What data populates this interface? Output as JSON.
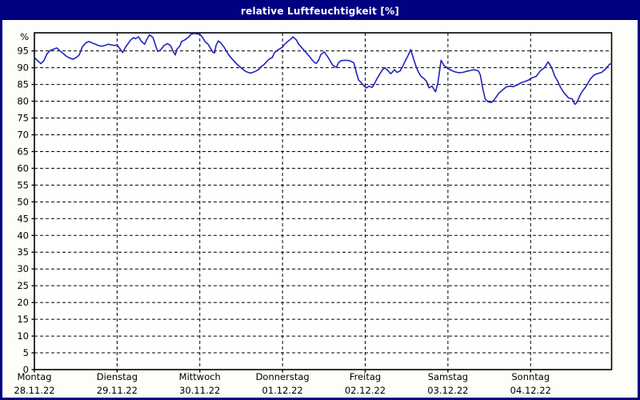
{
  "window": {
    "title": "relative Luftfeuchtigkeit [%]"
  },
  "colors": {
    "titlebar_bg": "#000080",
    "title_text": "#ffffff",
    "window_border": "#000080",
    "plot_bg": "#ffffff",
    "frame": "#000000",
    "grid": "#000000",
    "line": "#2323bb",
    "label_text": "#000000"
  },
  "chart_data": {
    "type": "line",
    "title": "relative Luftfeuchtigkeit [%]",
    "y_unit_label": "%",
    "ylim": [
      0,
      100.4
    ],
    "ytick_step": 5,
    "ytick_labels": [
      "0",
      "5",
      "10",
      "15",
      "20",
      "25",
      "30",
      "35",
      "40",
      "45",
      "50",
      "55",
      "60",
      "65",
      "70",
      "75",
      "80",
      "85",
      "90",
      "95"
    ],
    "grid": "dashed",
    "legend": "none",
    "x_axis": {
      "unit": "hours",
      "hours_max": 167.5,
      "day_width_hours": 24,
      "days": [
        {
          "name": "Montag",
          "date": "28.11.22"
        },
        {
          "name": "Dienstag",
          "date": "29.11.22"
        },
        {
          "name": "Mittwoch",
          "date": "30.11.22"
        },
        {
          "name": "Donnerstag",
          "date": "01.12.22"
        },
        {
          "name": "Freitag",
          "date": "02.12.22"
        },
        {
          "name": "Samstag",
          "date": "03.12.22"
        },
        {
          "name": "Sonntag",
          "date": "04.12.22"
        }
      ]
    },
    "series": [
      {
        "name": "relative Luftfeuchtigkeit",
        "color": "#2323bb",
        "points": [
          [
            0,
            93
          ],
          [
            0.9,
            92.1
          ],
          [
            1.9,
            91.2
          ],
          [
            2.8,
            92.2
          ],
          [
            3.7,
            94.2
          ],
          [
            4.7,
            95.2
          ],
          [
            5.6,
            95.5
          ],
          [
            6.5,
            95.9
          ],
          [
            7.4,
            95
          ],
          [
            8.4,
            94.2
          ],
          [
            9.3,
            93.4
          ],
          [
            10.2,
            92.9
          ],
          [
            11.2,
            92.5
          ],
          [
            12.1,
            93
          ],
          [
            13,
            93.8
          ],
          [
            13.9,
            96.2
          ],
          [
            14.9,
            97.4
          ],
          [
            15.8,
            97.8
          ],
          [
            16.7,
            97.4
          ],
          [
            17.7,
            97
          ],
          [
            18.6,
            96.6
          ],
          [
            19.5,
            96.4
          ],
          [
            20.4,
            96.6
          ],
          [
            21.4,
            97
          ],
          [
            22.3,
            96.8
          ],
          [
            23.2,
            96.6
          ],
          [
            24,
            96.8
          ],
          [
            25.6,
            94.5
          ],
          [
            26.5,
            96.2
          ],
          [
            27.9,
            98.2
          ],
          [
            28.8,
            99
          ],
          [
            29.3,
            98.6
          ],
          [
            30.2,
            99.2
          ],
          [
            31.1,
            97.8
          ],
          [
            32,
            97
          ],
          [
            32.5,
            98.2
          ],
          [
            33.4,
            99.8
          ],
          [
            34.4,
            99
          ],
          [
            35.3,
            96.2
          ],
          [
            35.8,
            94.8
          ],
          [
            36.7,
            95.4
          ],
          [
            37.6,
            96.6
          ],
          [
            38.6,
            97.2
          ],
          [
            39.5,
            96.6
          ],
          [
            40.4,
            94.6
          ],
          [
            40.9,
            93.8
          ],
          [
            41.3,
            95.4
          ],
          [
            42.3,
            96.6
          ],
          [
            42.7,
            97.8
          ],
          [
            43.7,
            98.3
          ],
          [
            44.6,
            99
          ],
          [
            45.5,
            100
          ],
          [
            46.5,
            100.2
          ],
          [
            48.1,
            99.9
          ],
          [
            48.8,
            99
          ],
          [
            49.5,
            97.8
          ],
          [
            50.4,
            97
          ],
          [
            51.1,
            95.8
          ],
          [
            51.8,
            94.6
          ],
          [
            52.3,
            94.4
          ],
          [
            52.7,
            96.6
          ],
          [
            53.4,
            98
          ],
          [
            54.1,
            97.4
          ],
          [
            55,
            96.2
          ],
          [
            55.7,
            95
          ],
          [
            56.4,
            93.8
          ],
          [
            57.4,
            92.6
          ],
          [
            58.1,
            91.8
          ],
          [
            58.8,
            91
          ],
          [
            59.7,
            90.2
          ],
          [
            60.4,
            89.6
          ],
          [
            61.1,
            89
          ],
          [
            62,
            88.6
          ],
          [
            62.7,
            88.4
          ],
          [
            63.4,
            88.6
          ],
          [
            64.3,
            89
          ],
          [
            65,
            89.4
          ],
          [
            65.7,
            90.2
          ],
          [
            66.7,
            91
          ],
          [
            67.4,
            91.8
          ],
          [
            68.1,
            92.5
          ],
          [
            69,
            93
          ],
          [
            69.7,
            94.5
          ],
          [
            70.4,
            95.1
          ],
          [
            71.3,
            95.7
          ],
          [
            72,
            96.1
          ],
          [
            72.7,
            97.1
          ],
          [
            73.6,
            97.9
          ],
          [
            74.3,
            98.4
          ],
          [
            75,
            99.2
          ],
          [
            76,
            98.3
          ],
          [
            76.6,
            97.1
          ],
          [
            77.3,
            96.3
          ],
          [
            78.3,
            95.1
          ],
          [
            79,
            94.3
          ],
          [
            79.7,
            93.5
          ],
          [
            80.6,
            92.3
          ],
          [
            81.3,
            91.5
          ],
          [
            81.8,
            91.3
          ],
          [
            82.5,
            92.3
          ],
          [
            83.1,
            93.9
          ],
          [
            84.1,
            94.7
          ],
          [
            85.2,
            93.1
          ],
          [
            85.9,
            91.9
          ],
          [
            86.6,
            90.7
          ],
          [
            87.6,
            90.1
          ],
          [
            88.3,
            91.5
          ],
          [
            89,
            92.1
          ],
          [
            89.9,
            92.2
          ],
          [
            90.8,
            92.2
          ],
          [
            91.7,
            92
          ],
          [
            92.7,
            91.4
          ],
          [
            93.4,
            88.7
          ],
          [
            94.1,
            86.3
          ],
          [
            94.8,
            85.6
          ],
          [
            95.7,
            84.5
          ],
          [
            96.4,
            84
          ],
          [
            97.1,
            84.5
          ],
          [
            98,
            84.1
          ],
          [
            98.7,
            85.2
          ],
          [
            99.4,
            86.7
          ],
          [
            100.3,
            88.2
          ],
          [
            101,
            89.4
          ],
          [
            101.7,
            90
          ],
          [
            102.7,
            89
          ],
          [
            103.4,
            88.2
          ],
          [
            103.8,
            88.6
          ],
          [
            104.5,
            89.4
          ],
          [
            105.2,
            88.6
          ],
          [
            106.1,
            89
          ],
          [
            106.8,
            90.2
          ],
          [
            107.5,
            91.8
          ],
          [
            108.5,
            93.8
          ],
          [
            109.2,
            95.4
          ],
          [
            109.9,
            93
          ],
          [
            110.8,
            90.2
          ],
          [
            111.5,
            88.6
          ],
          [
            112.2,
            87.4
          ],
          [
            113.1,
            86.7
          ],
          [
            113.8,
            85.9
          ],
          [
            114.5,
            84
          ],
          [
            115.4,
            84.5
          ],
          [
            116.4,
            82.8
          ],
          [
            117.1,
            85.5
          ],
          [
            118,
            92.2
          ],
          [
            118.9,
            90.6
          ],
          [
            119.8,
            89.9
          ],
          [
            120.8,
            89.3
          ],
          [
            121.9,
            88.8
          ],
          [
            123.1,
            88.5
          ],
          [
            124.3,
            88.6
          ],
          [
            125.4,
            88.9
          ],
          [
            126.6,
            89.2
          ],
          [
            127.7,
            89.4
          ],
          [
            128.9,
            89
          ],
          [
            129.4,
            87.8
          ],
          [
            130.1,
            83.9
          ],
          [
            130.8,
            80.7
          ],
          [
            131.7,
            79.8
          ],
          [
            132.6,
            79.6
          ],
          [
            133.5,
            80.5
          ],
          [
            134.7,
            82.3
          ],
          [
            135.9,
            83.4
          ],
          [
            137,
            84.3
          ],
          [
            138.2,
            84.5
          ],
          [
            138.9,
            84.3
          ],
          [
            140,
            84.8
          ],
          [
            141.2,
            85.5
          ],
          [
            142.4,
            85.9
          ],
          [
            143.4,
            86.3
          ],
          [
            144.4,
            87
          ],
          [
            145.6,
            87.4
          ],
          [
            146.8,
            89
          ],
          [
            148,
            90
          ],
          [
            149.1,
            91.7
          ],
          [
            149.8,
            90.6
          ],
          [
            150.3,
            89.5
          ],
          [
            151,
            87.5
          ],
          [
            151.9,
            85.9
          ],
          [
            152.6,
            84.3
          ],
          [
            153.3,
            83.1
          ],
          [
            154.2,
            81.9
          ],
          [
            154.9,
            81.1
          ],
          [
            155.4,
            80.8
          ],
          [
            156.1,
            80.7
          ],
          [
            156.8,
            79.1
          ],
          [
            157.2,
            79.3
          ],
          [
            157.7,
            80.3
          ],
          [
            158.4,
            81.9
          ],
          [
            159.1,
            83.1
          ],
          [
            160,
            84.3
          ],
          [
            160.7,
            85.5
          ],
          [
            161.4,
            86.7
          ],
          [
            162.3,
            87.7
          ],
          [
            163,
            88.1
          ],
          [
            163.7,
            88.3
          ],
          [
            164.6,
            88.6
          ],
          [
            165.3,
            89.2
          ],
          [
            166,
            89.9
          ],
          [
            166.9,
            91
          ],
          [
            167.5,
            91.3
          ]
        ]
      }
    ]
  }
}
